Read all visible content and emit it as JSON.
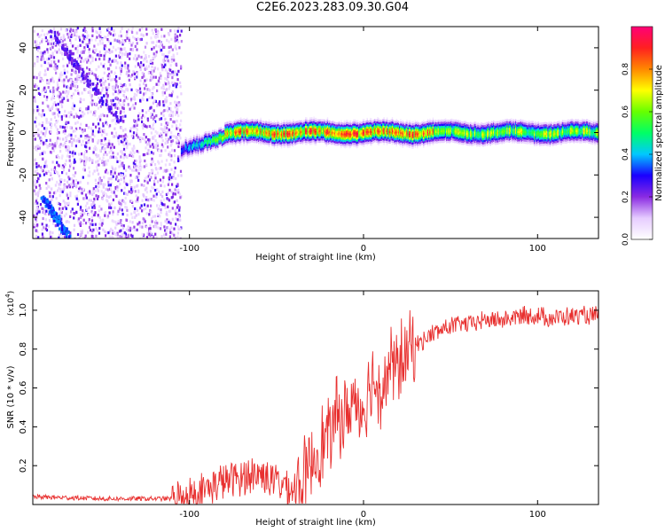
{
  "title": "C2E6.2023.283.09.30.G04",
  "colors": {
    "snr_line": "#e8302f",
    "background": "#ffffff",
    "axis": "#000000",
    "colormap": [
      "#ffffff",
      "#e6ccff",
      "#8a2be2",
      "#1a00ff",
      "#00c8ff",
      "#00ff66",
      "#66ff00",
      "#ffff00",
      "#ff8800",
      "#ff2020",
      "#ff0077"
    ]
  },
  "chart_data": [
    {
      "type": "heatmap",
      "title": "",
      "xlabel": "Height of straight line (km)",
      "ylabel": "Frequency (Hz)",
      "xlim": [
        -190,
        135
      ],
      "ylim": [
        -50,
        50
      ],
      "xticks": [
        -100,
        0,
        100
      ],
      "xtick_labels": [
        "-100",
        "0",
        "100"
      ],
      "yticks": [
        40,
        20,
        0,
        -20,
        -40
      ],
      "ytick_labels": [
        "40",
        "20",
        "0",
        "-20",
        "-40"
      ],
      "colorbar": {
        "label": "Normalized spectral amplitude",
        "range": [
          0.0,
          1.0
        ],
        "ticks": [
          0.0,
          0.2,
          0.4,
          0.6,
          0.8
        ],
        "tick_labels": [
          "0.0",
          "0.2",
          "0.4",
          "0.6",
          "0.8"
        ]
      },
      "regions": [
        {
          "name": "noise",
          "x_range": [
            -190,
            -105
          ],
          "freq_range": [
            -50,
            50
          ],
          "amplitude": 0.1
        },
        {
          "name": "onset",
          "x_range": [
            -105,
            -80
          ],
          "freq_center_start": -8,
          "freq_center_end": -2,
          "amplitude": 0.4
        },
        {
          "name": "signal",
          "x_range": [
            -80,
            135
          ],
          "freq_center": 0,
          "bandwidth": 6,
          "amplitude": 0.85
        }
      ],
      "streaks": [
        {
          "from": [
            -180,
            48
          ],
          "to": [
            -140,
            5
          ],
          "amplitude": 0.2
        },
        {
          "from": [
            -185,
            -30
          ],
          "to": [
            -170,
            -48
          ],
          "amplitude": 0.3
        }
      ]
    },
    {
      "type": "line",
      "title": "",
      "xlabel": "Height of straight line (km)",
      "ylabel": "SNR (10 * v/v)",
      "yunit_note": "(x10",
      "yunit_exp": "4",
      "yunit_close": ")",
      "xlim": [
        -190,
        135
      ],
      "ylim": [
        0,
        1.1
      ],
      "xticks": [
        -100,
        0,
        100
      ],
      "xtick_labels": [
        "-100",
        "0",
        "100"
      ],
      "yticks": [
        0.2,
        0.4,
        0.6,
        0.8,
        1.0
      ],
      "ytick_labels": [
        "0.2",
        "0.4",
        "0.6",
        "0.8",
        "1.0"
      ],
      "series": [
        {
          "x": [
            -190,
            -150,
            -110,
            -100,
            -90,
            -80,
            -70,
            -60,
            -50,
            -40,
            -35,
            -30,
            -25,
            -20,
            -15,
            -10,
            -5,
            0,
            5,
            10,
            15,
            20,
            25,
            30,
            40,
            50,
            60,
            70,
            80,
            90,
            100,
            110,
            120,
            135
          ],
          "values": [
            0.04,
            0.03,
            0.03,
            0.05,
            0.08,
            0.12,
            0.14,
            0.16,
            0.12,
            0.08,
            0.1,
            0.22,
            0.3,
            0.35,
            0.45,
            0.45,
            0.55,
            0.5,
            0.65,
            0.6,
            0.7,
            0.72,
            0.78,
            0.82,
            0.88,
            0.92,
            0.93,
            0.95,
            0.95,
            0.97,
            0.97,
            0.96,
            0.97,
            0.97
          ]
        }
      ]
    }
  ]
}
